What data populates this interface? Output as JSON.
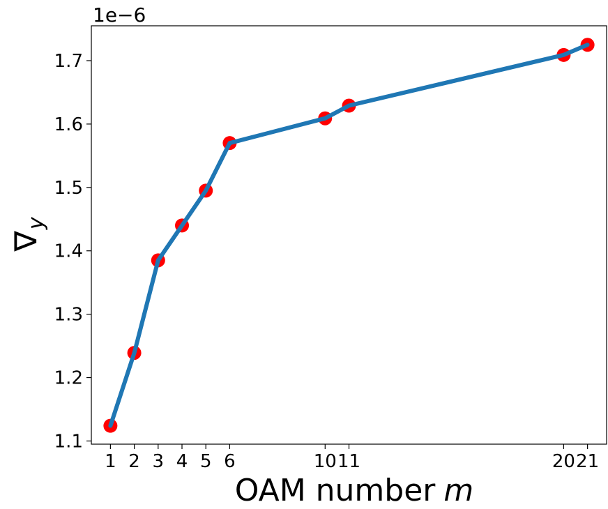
{
  "chart_data": {
    "type": "line",
    "title": "",
    "xlabel": "OAM number",
    "xlabel_var": "m",
    "ylabel_symbol": "∇",
    "ylabel_sub": "y",
    "y_offset_label": "1e−6",
    "x": [
      1,
      2,
      3,
      4,
      5,
      6,
      10,
      11,
      20,
      21
    ],
    "y": [
      1.124,
      1.239,
      1.385,
      1.44,
      1.495,
      1.57,
      1.609,
      1.629,
      1.709,
      1.725
    ],
    "xlim": [
      0.2,
      21.8
    ],
    "ylim": [
      1.095,
      1.755
    ],
    "x_ticks": [
      1,
      2,
      3,
      4,
      5,
      6,
      10,
      11,
      20,
      21
    ],
    "x_tick_labels": [
      "1",
      "2",
      "3",
      "4",
      "5",
      "6",
      "10",
      "11",
      "20",
      "21"
    ],
    "y_ticks": [
      1.1,
      1.2,
      1.3,
      1.4,
      1.5,
      1.6,
      1.7
    ],
    "y_tick_labels": [
      "1.1",
      "1.2",
      "1.3",
      "1.4",
      "1.5",
      "1.6",
      "1.7"
    ],
    "grid": false,
    "line_color": "#1f77b4",
    "marker_color": "#ff0000"
  }
}
